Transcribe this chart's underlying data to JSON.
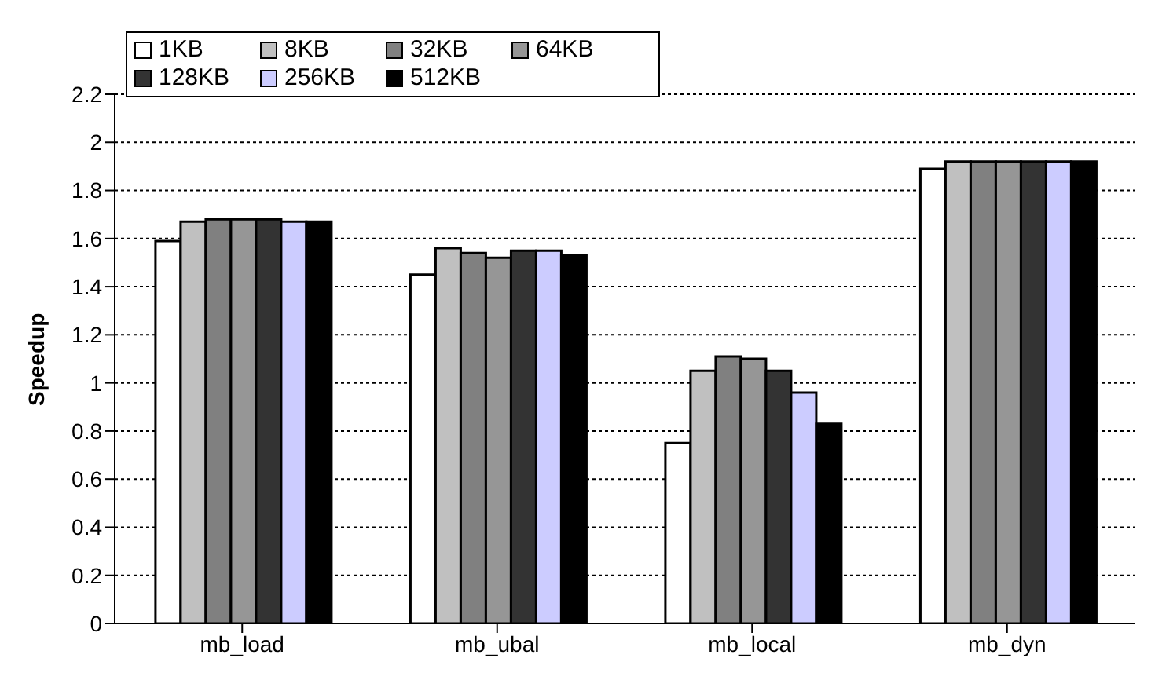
{
  "chart_data": {
    "type": "bar",
    "ylabel": "Speedup",
    "categories": [
      "mb_load",
      "mb_ubal",
      "mb_local",
      "mb_dyn"
    ],
    "series": [
      {
        "name": "1KB",
        "color": "#ffffff",
        "values": [
          1.59,
          1.45,
          0.75,
          1.89
        ]
      },
      {
        "name": "8KB",
        "color": "#c0c0c0",
        "values": [
          1.67,
          1.56,
          1.05,
          1.92
        ]
      },
      {
        "name": "32KB",
        "color": "#808080",
        "values": [
          1.68,
          1.54,
          1.11,
          1.92
        ]
      },
      {
        "name": "64KB",
        "color": "#969696",
        "values": [
          1.68,
          1.52,
          1.1,
          1.92
        ]
      },
      {
        "name": "128KB",
        "color": "#333333",
        "values": [
          1.68,
          1.55,
          1.05,
          1.92
        ]
      },
      {
        "name": "256KB",
        "color": "#ccccff",
        "values": [
          1.67,
          1.55,
          0.96,
          1.92
        ]
      },
      {
        "name": "512KB",
        "color": "#000000",
        "values": [
          1.67,
          1.53,
          0.83,
          1.92
        ]
      }
    ],
    "ylim": [
      0,
      2.2
    ],
    "yticks": [
      0,
      0.2,
      0.4,
      0.6,
      0.8,
      1,
      1.2,
      1.4,
      1.6,
      1.8,
      2,
      2.2
    ],
    "grid": "y",
    "legend": "top left"
  }
}
